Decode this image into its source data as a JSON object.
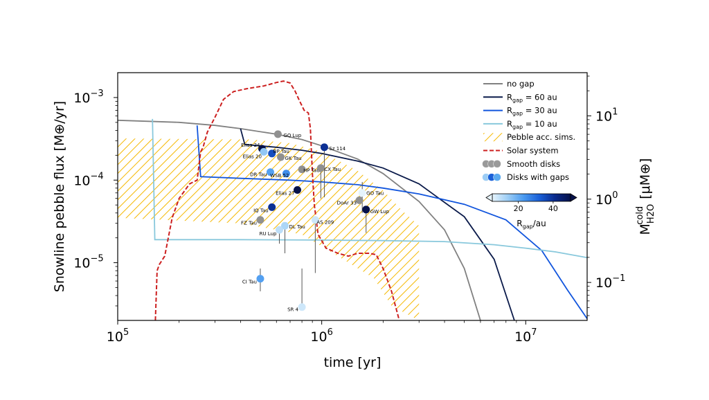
{
  "chart_data": {
    "type": "line",
    "xlabel": "time [yr]",
    "ylabel": "Snowline pebble flux [M⊕/yr]",
    "ylabel_right": "M_H2O^cold [μM⊕]",
    "x_scale": "log",
    "y_scale": "log",
    "xlim": [
      100000,
      20000000
    ],
    "ylim": [
      2e-06,
      0.002
    ],
    "y2lim": [
      0.035,
      33
    ],
    "x_ticks": [
      {
        "value": 100000,
        "base": "10",
        "exp": "5"
      },
      {
        "value": 1000000,
        "base": "10",
        "exp": "6"
      },
      {
        "value": 10000000,
        "base": "10",
        "exp": "7"
      }
    ],
    "y_ticks": [
      {
        "value": 0.001,
        "base": "10",
        "exp": "−3"
      },
      {
        "value": 0.0001,
        "base": "10",
        "exp": "−4"
      },
      {
        "value": 1e-05,
        "base": "10",
        "exp": "−5"
      }
    ],
    "y2_ticks": [
      {
        "value": 10,
        "base": "10",
        "exp": "1"
      },
      {
        "value": 1,
        "base": "10",
        "exp": "0"
      },
      {
        "value": 0.1,
        "base": "10",
        "exp": "−1"
      }
    ],
    "grid": false,
    "legend_position": "top-right",
    "legend": [
      {
        "label": "no gap",
        "kind": "line",
        "color": "#808080"
      },
      {
        "label": "R_gap = 60 au",
        "kind": "line",
        "color": "#0a1a4a"
      },
      {
        "label": "R_gap = 30 au",
        "kind": "line",
        "color": "#1155dd"
      },
      {
        "label": "R_gap = 10 au",
        "kind": "line",
        "color": "#88c8dc"
      },
      {
        "label": "Pebble acc. sims.",
        "kind": "hatch",
        "color": "#f5b800"
      },
      {
        "label": "Solar system",
        "kind": "dashed",
        "color": "#cc1f1f"
      },
      {
        "label": "Smooth disks",
        "kind": "markers-gray",
        "color": "#909090"
      },
      {
        "label": "Disks with gaps",
        "kind": "markers-blue",
        "color": "#5aaaf0"
      }
    ],
    "colorbar": {
      "label": "R_gap/au",
      "min": 5,
      "max": 50,
      "ticks": [
        20,
        40
      ],
      "colors": [
        "#e6f4fc",
        "#9ccdf5",
        "#4a9af0",
        "#1a60d8",
        "#0a2a8c",
        "#06124a"
      ]
    },
    "series": [
      {
        "name": "no gap",
        "color": "#808080",
        "style": "solid",
        "points": [
          [
            100000,
            0.00053
          ],
          [
            200000,
            0.0005
          ],
          [
            300000,
            0.00046
          ],
          [
            400000,
            0.00042
          ],
          [
            600000,
            0.00036
          ],
          [
            800000,
            0.00031
          ],
          [
            1000000,
            0.00026
          ],
          [
            1500000,
            0.00018
          ],
          [
            2000000,
            0.00012
          ],
          [
            3000000,
            5.5e-05
          ],
          [
            4000000,
            2.5e-05
          ],
          [
            5000000,
            8.5e-06
          ],
          [
            6000000,
            2e-06
          ]
        ]
      },
      {
        "name": "R_gap = 60 au",
        "color": "#0a1a4a",
        "style": "solid",
        "points": [
          [
            400000,
            0.00042
          ],
          [
            420000,
            0.00027
          ],
          [
            600000,
            0.00025
          ],
          [
            800000,
            0.00023
          ],
          [
            1000000,
            0.00021
          ],
          [
            1500000,
            0.00017
          ],
          [
            2000000,
            0.00014
          ],
          [
            3000000,
            9e-05
          ],
          [
            5000000,
            3.6e-05
          ],
          [
            7000000,
            1.1e-05
          ],
          [
            8800000,
            2e-06
          ]
        ]
      },
      {
        "name": "R_gap = 30 au",
        "color": "#1155dd",
        "style": "solid",
        "points": [
          [
            245000,
            0.00046
          ],
          [
            255000,
            0.00011
          ],
          [
            400000,
            0.000105
          ],
          [
            700000,
            0.0001
          ],
          [
            1000000,
            9.5e-05
          ],
          [
            1500000,
            8.8e-05
          ],
          [
            2000000,
            8e-05
          ],
          [
            3000000,
            6.8e-05
          ],
          [
            5000000,
            5.1e-05
          ],
          [
            8000000,
            3.3e-05
          ],
          [
            12000000,
            1.4e-05
          ],
          [
            16000000,
            4.7e-06
          ],
          [
            20000000,
            2.1e-06
          ]
        ]
      },
      {
        "name": "R_gap = 10 au",
        "color": "#88c8dc",
        "style": "solid",
        "points": [
          [
            148000,
            0.00055
          ],
          [
            152000,
            1.9e-05
          ],
          [
            400000,
            1.9e-05
          ],
          [
            1000000,
            1.88e-05
          ],
          [
            2000000,
            1.85e-05
          ],
          [
            4000000,
            1.8e-05
          ],
          [
            7000000,
            1.65e-05
          ],
          [
            10000000,
            1.5e-05
          ],
          [
            14000000,
            1.35e-05
          ],
          [
            20000000,
            1.15e-05
          ]
        ]
      },
      {
        "name": "Solar system",
        "color": "#cc1f1f",
        "style": "dashed",
        "points": [
          [
            153000,
            2e-06
          ],
          [
            156000,
            8e-06
          ],
          [
            160000,
            9.5e-06
          ],
          [
            170000,
            1.2e-05
          ],
          [
            185000,
            3.5e-05
          ],
          [
            200000,
            6e-05
          ],
          [
            225000,
            9e-05
          ],
          [
            245000,
            0.0001
          ],
          [
            255000,
            0.00022
          ],
          [
            262000,
            0.00025
          ],
          [
            275000,
            0.00038
          ],
          [
            300000,
            0.00058
          ],
          [
            330000,
            0.00095
          ],
          [
            370000,
            0.00118
          ],
          [
            430000,
            0.00128
          ],
          [
            520000,
            0.00138
          ],
          [
            600000,
            0.00152
          ],
          [
            650000,
            0.00158
          ],
          [
            700000,
            0.0015
          ],
          [
            740000,
            0.0012
          ],
          [
            780000,
            0.0009
          ],
          [
            820000,
            0.0007
          ],
          [
            860000,
            0.00065
          ],
          [
            880000,
            0.00042
          ],
          [
            900000,
            0.00012
          ],
          [
            920000,
            5e-05
          ],
          [
            960000,
            2.2e-05
          ],
          [
            1050000,
            1.5e-05
          ],
          [
            1200000,
            1.3e-05
          ],
          [
            1350000,
            1.2e-05
          ],
          [
            1500000,
            1.3e-05
          ],
          [
            1700000,
            1.3e-05
          ],
          [
            1850000,
            1.25e-05
          ],
          [
            2000000,
            8.5e-06
          ],
          [
            2200000,
            4.5e-06
          ],
          [
            2400000,
            2e-06
          ]
        ]
      }
    ],
    "pebble_acc_region": {
      "color": "#f5b800",
      "upper": [
        [
          100000,
          0.00032
        ],
        [
          450000,
          0.00031
        ],
        [
          700000,
          0.00028
        ],
        [
          1000000,
          0.00022
        ],
        [
          1500000,
          0.00013
        ],
        [
          2000000,
          7.5e-05
        ],
        [
          2500000,
          4.2e-05
        ],
        [
          3000000,
          2.8e-05
        ]
      ],
      "lower": [
        [
          100000,
          3.5e-05
        ],
        [
          400000,
          3e-05
        ],
        [
          800000,
          2.2e-05
        ],
        [
          1200000,
          1.2e-05
        ],
        [
          1800000,
          6.5e-06
        ],
        [
          2200000,
          3e-06
        ],
        [
          3000000,
          2e-06
        ]
      ]
    },
    "disks": [
      {
        "name": "GQ Lup",
        "x": 610000,
        "y": 0.00036,
        "type": "smooth",
        "rgap": null
      },
      {
        "name": "Elias 24",
        "x": 510000,
        "y": 0.00024,
        "type": "gap",
        "rgap": 50
      },
      {
        "name": "Elias 20",
        "x": 520000,
        "y": 0.00022,
        "type": "gap",
        "rgap": 15
      },
      {
        "name": "BP Tau",
        "x": 570000,
        "y": 0.00021,
        "type": "gap",
        "rgap": 35
      },
      {
        "name": "GK Tau",
        "x": 630000,
        "y": 0.00019,
        "type": "smooth",
        "rgap": null
      },
      {
        "name": "Sz 114",
        "x": 1030000,
        "y": 0.00025,
        "type": "gap",
        "rgap": 40
      },
      {
        "name": "HP Tau",
        "x": 800000,
        "y": 0.000135,
        "type": "smooth",
        "rgap": null
      },
      {
        "name": "CX Tau",
        "x": 990000,
        "y": 0.00014,
        "type": "smooth",
        "rgap": null
      },
      {
        "name": "DR Tau",
        "x": 560000,
        "y": 0.000125,
        "type": "gap",
        "rgap": 22
      },
      {
        "name": "WSB 52",
        "x": 670000,
        "y": 0.00012,
        "type": "gap",
        "rgap": 25
      },
      {
        "name": "Elias 27",
        "x": 760000,
        "y": 7.6e-05,
        "type": "gap",
        "rgap": 50
      },
      {
        "name": "GO Tau",
        "x": 1580000,
        "y": 7e-05,
        "type": "gap",
        "rgap": 5
      },
      {
        "name": "DoAr 33",
        "x": 1530000,
        "y": 5.7e-05,
        "type": "smooth",
        "rgap": null
      },
      {
        "name": "GW Lup",
        "x": 1650000,
        "y": 4.4e-05,
        "type": "gap",
        "rgap": 50
      },
      {
        "name": "IQ Tau",
        "x": 570000,
        "y": 4.7e-05,
        "type": "gap",
        "rgap": 40
      },
      {
        "name": "FZ Tau",
        "x": 500000,
        "y": 3.3e-05,
        "type": "smooth",
        "rgap": null
      },
      {
        "name": "AS 209",
        "x": 930000,
        "y": 3.3e-05,
        "type": "gap",
        "rgap": 8
      },
      {
        "name": "DL Tau",
        "x": 660000,
        "y": 2.8e-05,
        "type": "gap",
        "rgap": 12
      },
      {
        "name": "RU Lup",
        "x": 620000,
        "y": 2.5e-05,
        "type": "gap",
        "rgap": 10
      },
      {
        "name": "CI Tau",
        "x": 500000,
        "y": 6.4e-06,
        "type": "gap",
        "rgap": 22
      },
      {
        "name": "SR 4",
        "x": 800000,
        "y": 2.9e-06,
        "type": "gap",
        "rgap": 8
      }
    ]
  }
}
